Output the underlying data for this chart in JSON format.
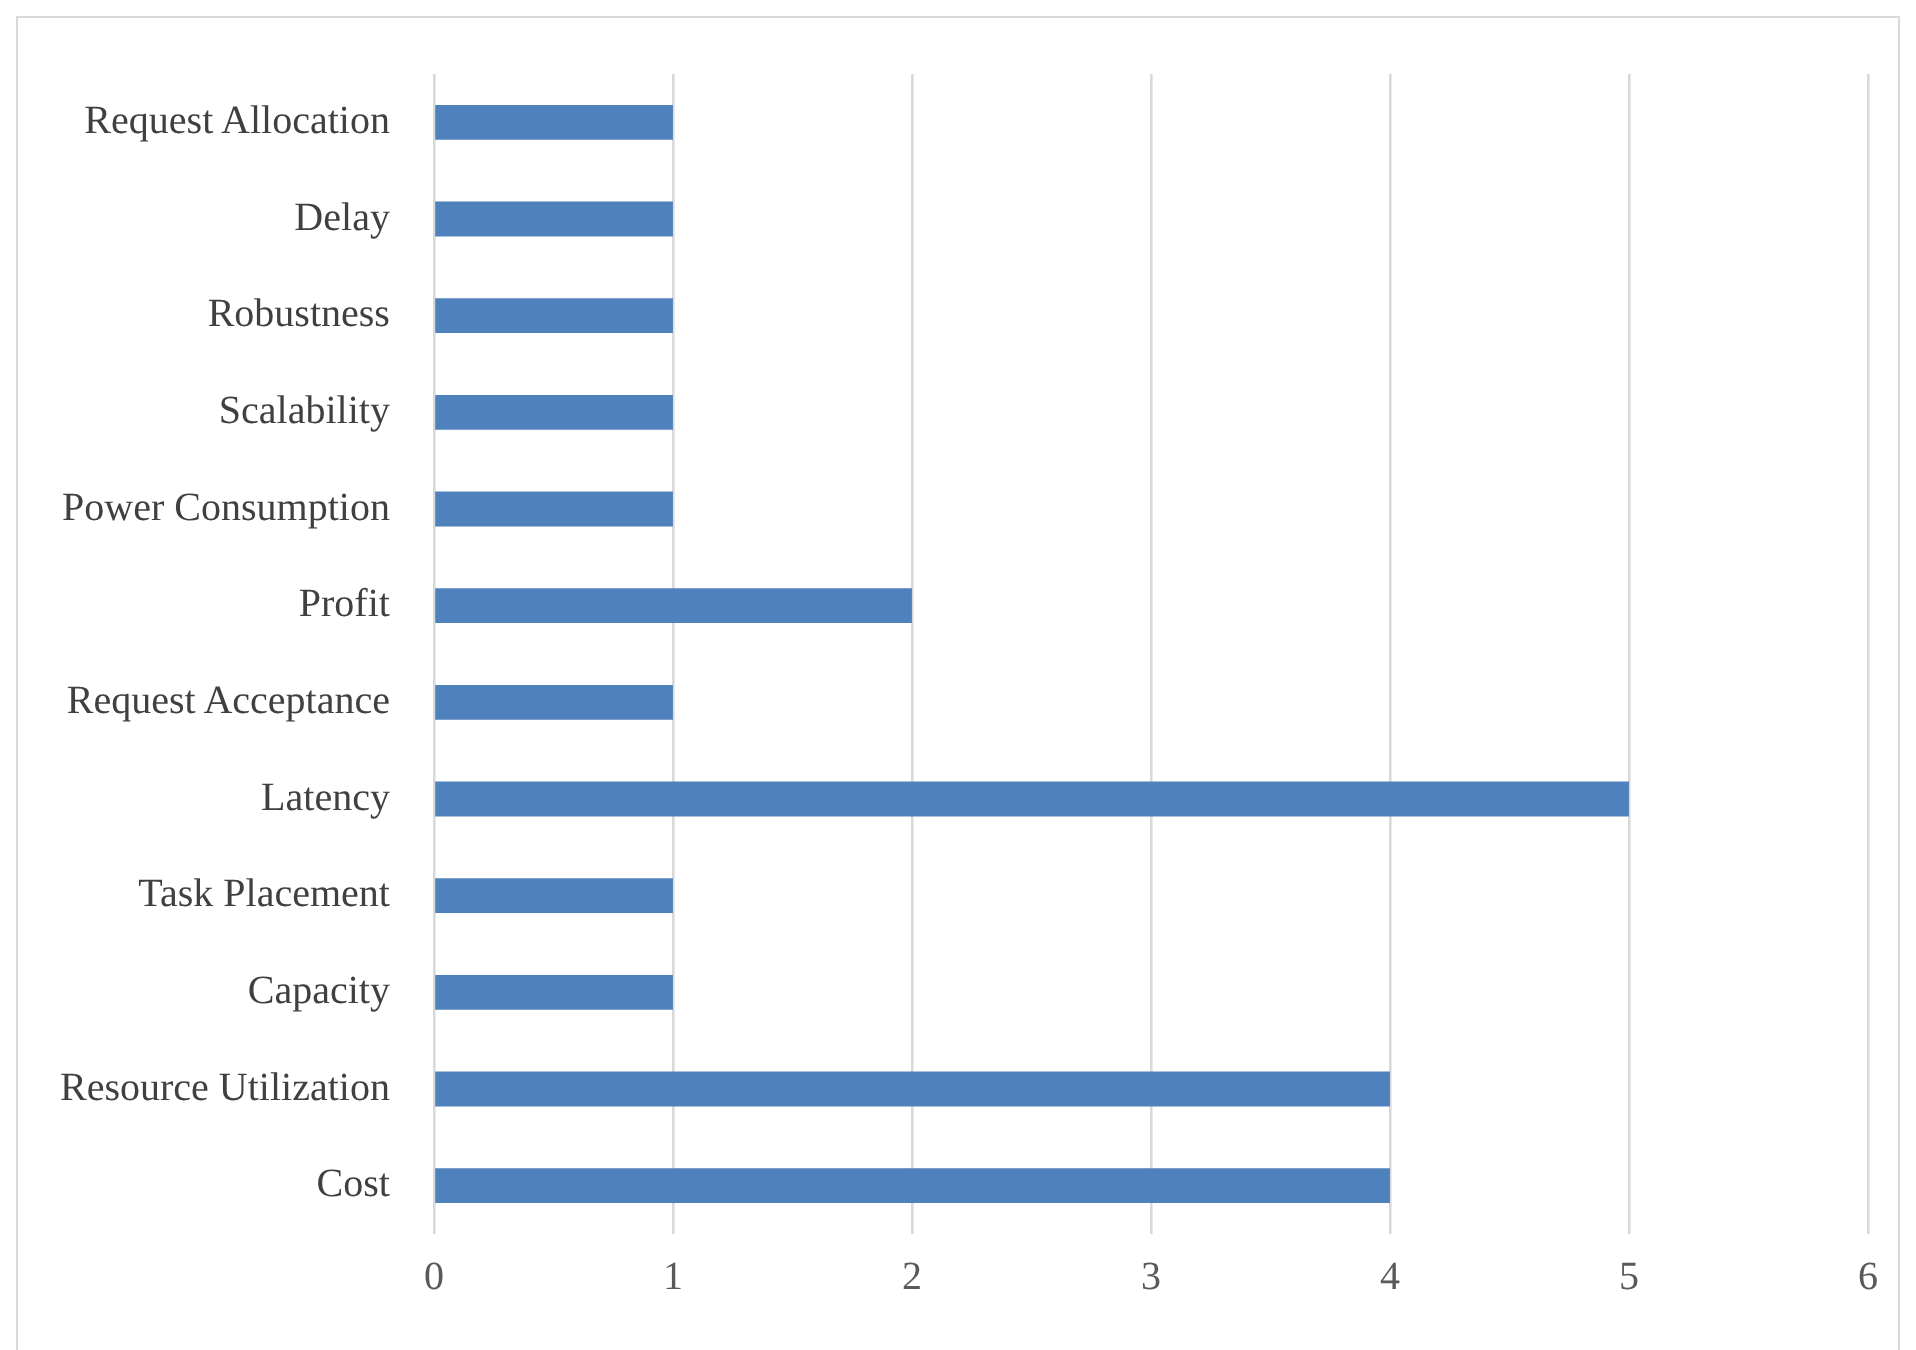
{
  "chart_data": {
    "type": "bar",
    "orientation": "horizontal",
    "categories": [
      "Request Allocation",
      "Delay",
      "Robustness",
      "Scalability",
      "Power Consumption",
      "Profit",
      "Request Acceptance",
      "Latency",
      "Task Placement",
      "Capacity",
      "Resource Utilization",
      "Cost"
    ],
    "values": [
      1,
      1,
      1,
      1,
      1,
      2,
      1,
      5,
      1,
      1,
      4,
      4
    ],
    "color": "#4f81bd",
    "xlim": [
      0,
      6
    ],
    "xticks": [
      0,
      1,
      2,
      3,
      4,
      5,
      6
    ],
    "grid": "x",
    "legend": false
  }
}
